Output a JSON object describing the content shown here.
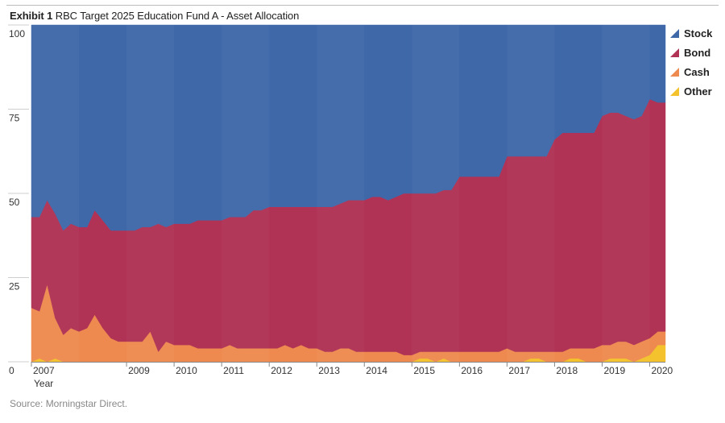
{
  "header": {
    "exhibit_label": "Exhibit 1",
    "chart_title": "RBC Target 2025 Education Fund A - Asset Allocation"
  },
  "footer": {
    "source": "Source: Morningstar Direct."
  },
  "chart_data": {
    "type": "area",
    "stacked": true,
    "title": "RBC Target 2025 Education Fund A - Asset Allocation",
    "xlabel": "Year",
    "ylabel": "",
    "xlim": [
      2007.0,
      2020.33
    ],
    "ylim": [
      0,
      100
    ],
    "yticks": [
      0,
      25,
      50,
      75,
      100
    ],
    "xtick_labels": [
      "2007",
      "2009",
      "2010",
      "2011",
      "2012",
      "2013",
      "2014",
      "2015",
      "2016",
      "2017",
      "2018",
      "2019",
      "2020"
    ],
    "xtick_positions": [
      2007,
      2009,
      2010,
      2011,
      2012,
      2013,
      2014,
      2015,
      2016,
      2017,
      2018,
      2019,
      2020
    ],
    "legend_position": "right",
    "x": [
      2007.0,
      2007.17,
      2007.33,
      2007.5,
      2007.67,
      2007.83,
      2008.0,
      2008.17,
      2008.33,
      2008.5,
      2008.67,
      2008.83,
      2009.0,
      2009.17,
      2009.33,
      2009.5,
      2009.67,
      2009.83,
      2010.0,
      2010.17,
      2010.33,
      2010.5,
      2010.67,
      2010.83,
      2011.0,
      2011.17,
      2011.33,
      2011.5,
      2011.67,
      2011.83,
      2012.0,
      2012.17,
      2012.33,
      2012.5,
      2012.67,
      2012.83,
      2013.0,
      2013.17,
      2013.33,
      2013.5,
      2013.67,
      2013.83,
      2014.0,
      2014.17,
      2014.33,
      2014.5,
      2014.67,
      2014.83,
      2015.0,
      2015.17,
      2015.33,
      2015.5,
      2015.67,
      2015.83,
      2016.0,
      2016.17,
      2016.33,
      2016.5,
      2016.67,
      2016.83,
      2017.0,
      2017.17,
      2017.33,
      2017.5,
      2017.67,
      2017.83,
      2018.0,
      2018.17,
      2018.33,
      2018.5,
      2018.67,
      2018.83,
      2019.0,
      2019.17,
      2019.33,
      2019.5,
      2019.67,
      2019.83,
      2020.0,
      2020.17,
      2020.33
    ],
    "series": [
      {
        "name": "Other",
        "color": "#f3c22c",
        "values": [
          0,
          1,
          0,
          1,
          0,
          0,
          0,
          0,
          0,
          0,
          0,
          0,
          0,
          0,
          0,
          0,
          0,
          0,
          0,
          0,
          0,
          0,
          0,
          0,
          0,
          0,
          0,
          0,
          0,
          0,
          0,
          0,
          0,
          0,
          0,
          0,
          0,
          0,
          0,
          0,
          0,
          0,
          0,
          0,
          0,
          0,
          0,
          0,
          0,
          1,
          1,
          0,
          1,
          0,
          0,
          0,
          0,
          0,
          0,
          0,
          0,
          0,
          0,
          1,
          1,
          0,
          0,
          0,
          1,
          1,
          0,
          0,
          0,
          1,
          1,
          1,
          0,
          1,
          2,
          5,
          5
        ]
      },
      {
        "name": "Cash",
        "color": "#ee8a4f",
        "values": [
          16,
          14,
          23,
          12,
          8,
          10,
          9,
          10,
          14,
          10,
          7,
          6,
          6,
          6,
          6,
          9,
          3,
          6,
          5,
          5,
          5,
          4,
          4,
          4,
          4,
          5,
          4,
          4,
          4,
          4,
          4,
          4,
          5,
          4,
          5,
          4,
          4,
          3,
          3,
          4,
          4,
          3,
          3,
          3,
          3,
          3,
          3,
          2,
          2,
          2,
          2,
          3,
          2,
          3,
          3,
          3,
          3,
          3,
          3,
          3,
          4,
          3,
          3,
          2,
          2,
          3,
          3,
          3,
          3,
          3,
          4,
          4,
          5,
          4,
          5,
          5,
          5,
          5,
          5,
          4,
          4
        ]
      },
      {
        "name": "Bond",
        "color": "#b03255",
        "values": [
          27,
          28,
          25,
          31,
          31,
          31,
          31,
          30,
          31,
          32,
          32,
          33,
          33,
          33,
          34,
          31,
          38,
          34,
          36,
          36,
          36,
          38,
          38,
          38,
          38,
          38,
          39,
          39,
          41,
          41,
          42,
          42,
          41,
          42,
          41,
          42,
          42,
          43,
          43,
          43,
          44,
          45,
          45,
          46,
          46,
          45,
          46,
          48,
          48,
          47,
          47,
          47,
          48,
          48,
          52,
          52,
          52,
          52,
          52,
          52,
          57,
          58,
          58,
          58,
          58,
          58,
          63,
          65,
          64,
          64,
          64,
          64,
          68,
          69,
          68,
          67,
          67,
          67,
          71,
          68,
          68
        ]
      },
      {
        "name": "Stock",
        "color": "#3f68a9",
        "values": [
          57,
          57,
          52,
          56,
          61,
          59,
          60,
          60,
          55,
          58,
          61,
          61,
          61,
          61,
          60,
          60,
          59,
          60,
          59,
          59,
          59,
          58,
          58,
          58,
          58,
          57,
          57,
          57,
          55,
          55,
          54,
          54,
          54,
          54,
          54,
          54,
          54,
          54,
          54,
          53,
          52,
          52,
          52,
          51,
          51,
          52,
          51,
          50,
          50,
          50,
          50,
          50,
          49,
          49,
          45,
          45,
          45,
          45,
          45,
          45,
          39,
          39,
          39,
          39,
          39,
          39,
          34,
          32,
          32,
          32,
          32,
          32,
          27,
          26,
          26,
          27,
          28,
          27,
          22,
          23,
          23
        ]
      }
    ]
  }
}
